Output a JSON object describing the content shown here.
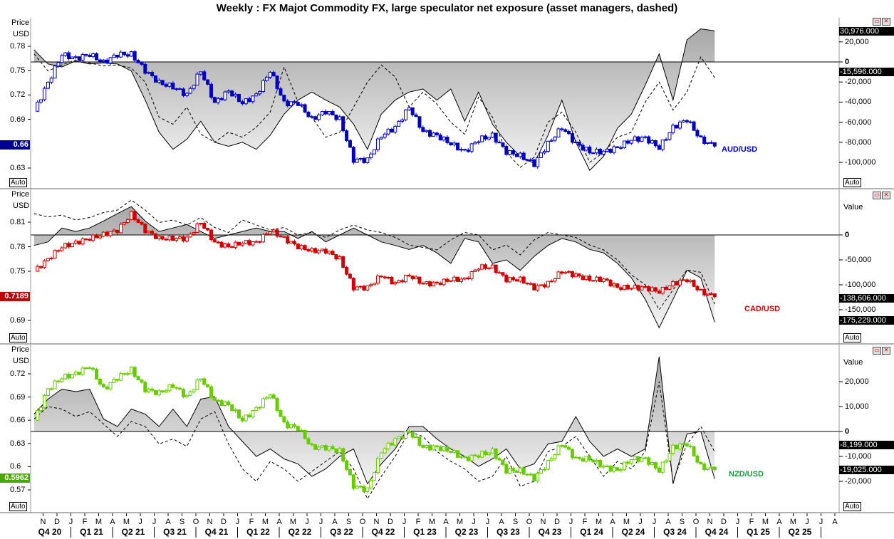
{
  "title": "Weekly : FX Majot Commodity FX, large speculator net exposure (asset managers, dashed)",
  "axis_common": {
    "price_label": "Price",
    "currency_label": "USD",
    "value_label": "Value",
    "auto_label": "Auto"
  },
  "months": [
    "N",
    "D",
    "J",
    "F",
    "M",
    "A",
    "M",
    "J",
    "J",
    "A",
    "S",
    "O",
    "N",
    "D",
    "J",
    "F",
    "M",
    "A",
    "M",
    "J",
    "J",
    "A",
    "S",
    "O",
    "N",
    "D",
    "J",
    "F",
    "M",
    "A",
    "M",
    "J",
    "J",
    "A",
    "S",
    "O",
    "N",
    "D",
    "J",
    "F",
    "M",
    "A",
    "M",
    "J",
    "J",
    "A",
    "S",
    "O",
    "N",
    "D",
    "J",
    "F",
    "M",
    "A",
    "M",
    "J",
    "J",
    "A"
  ],
  "quarters": [
    "Q4 20",
    "Q1 21",
    "Q2 21",
    "Q3 21",
    "Q4 21",
    "Q1 22",
    "Q2 22",
    "Q3 22",
    "Q4 22",
    "Q1 23",
    "Q2 23",
    "Q3 23",
    "Q4 23",
    "Q1 24",
    "Q2 24",
    "Q3 24",
    "Q4 24",
    "Q1 25",
    "Q2 25"
  ],
  "chart_data": [
    {
      "type": "candlestick+line",
      "pair": "AUD/USD",
      "color": "#0000c0",
      "last_price": "0.66",
      "price_ticks": [
        "0.78",
        "0.75",
        "0.72",
        "0.69",
        "0.63"
      ],
      "value_ticks": [
        "20,000",
        "0",
        "-20,000",
        "-40,000",
        "-60,000",
        "-80,000",
        "-100,000"
      ],
      "last_values": [
        "30,976.000",
        "-15,596.000"
      ],
      "price_monthly": [
        0.7,
        0.735,
        0.77,
        0.765,
        0.77,
        0.76,
        0.77,
        0.77,
        0.75,
        0.735,
        0.73,
        0.72,
        0.75,
        0.71,
        0.725,
        0.71,
        0.72,
        0.75,
        0.71,
        0.71,
        0.69,
        0.7,
        0.69,
        0.64,
        0.64,
        0.67,
        0.68,
        0.705,
        0.675,
        0.67,
        0.66,
        0.65,
        0.665,
        0.67,
        0.65,
        0.645,
        0.635,
        0.66,
        0.68,
        0.66,
        0.65,
        0.65,
        0.655,
        0.665,
        0.667,
        0.655,
        0.68,
        0.69,
        0.665,
        0.657
      ],
      "net_large_spec": [
        12000,
        -2000,
        -5000,
        1000,
        -2000,
        -1000,
        -2000,
        -9000,
        -38000,
        -70000,
        -87000,
        -77000,
        -59000,
        -80000,
        -84000,
        -80000,
        -87000,
        -73000,
        -52000,
        -38000,
        -30000,
        -38000,
        -45000,
        -62000,
        -87000,
        -52000,
        -38000,
        -30000,
        -27000,
        -38000,
        -27000,
        -59000,
        -30000,
        -62000,
        -80000,
        -94000,
        -101000,
        -73000,
        -38000,
        -80000,
        -108000,
        -94000,
        -66000,
        -52000,
        -23000,
        8000,
        -38000,
        22000,
        33000,
        30976
      ],
      "net_asset_managers": [
        8000,
        -9000,
        -3000,
        2000,
        -1000,
        -4000,
        -3000,
        -6000,
        -20000,
        -55000,
        -62000,
        -45000,
        -72000,
        -80000,
        -70000,
        -75000,
        -65000,
        -50000,
        -5000,
        -40000,
        -55000,
        -75000,
        -70000,
        -45000,
        -20000,
        -3000,
        -15000,
        -45000,
        -30000,
        -42000,
        -60000,
        -72000,
        -35000,
        -55000,
        -90000,
        -105000,
        -95000,
        -60000,
        -50000,
        -70000,
        -100000,
        -90000,
        -75000,
        -70000,
        -40000,
        -20000,
        -48000,
        -30000,
        5000,
        -15596
      ]
    },
    {
      "type": "candlestick+line",
      "pair": "CAD/USD",
      "color": "#d00000",
      "last_price": "0.7189",
      "price_ticks": [
        "0.81",
        "0.78",
        "0.75",
        "0.69"
      ],
      "value_ticks": [
        "0",
        "-50,000",
        "-100,000",
        "-150,000"
      ],
      "last_values": [
        "-138,606.000",
        "-175,229.000"
      ],
      "price_monthly": [
        0.75,
        0.765,
        0.78,
        0.785,
        0.79,
        0.795,
        0.8,
        0.82,
        0.8,
        0.79,
        0.79,
        0.79,
        0.81,
        0.785,
        0.78,
        0.785,
        0.785,
        0.8,
        0.79,
        0.78,
        0.775,
        0.775,
        0.765,
        0.73,
        0.73,
        0.745,
        0.735,
        0.745,
        0.735,
        0.735,
        0.74,
        0.74,
        0.755,
        0.755,
        0.74,
        0.74,
        0.73,
        0.735,
        0.75,
        0.745,
        0.74,
        0.74,
        0.73,
        0.73,
        0.73,
        0.725,
        0.735,
        0.74,
        0.725,
        0.7189
      ],
      "net_large_spec": [
        -21000,
        -14000,
        14000,
        7000,
        14000,
        28000,
        43000,
        57000,
        28000,
        7000,
        14000,
        21000,
        7000,
        -7000,
        0,
        7000,
        14000,
        7000,
        7000,
        -7000,
        7000,
        -14000,
        0,
        14000,
        0,
        -14000,
        -21000,
        -29000,
        -21000,
        -36000,
        -57000,
        -7000,
        -14000,
        -57000,
        -50000,
        -71000,
        -43000,
        -21000,
        -7000,
        -14000,
        -29000,
        -36000,
        -57000,
        -86000,
        -129000,
        -186000,
        -129000,
        -71000,
        -86000,
        -175229
      ],
      "net_asset_managers": [
        43000,
        36000,
        40000,
        30000,
        35000,
        45000,
        50000,
        70000,
        50000,
        25000,
        30000,
        20000,
        35000,
        15000,
        5000,
        30000,
        20000,
        10000,
        15000,
        0,
        5000,
        -5000,
        10000,
        20000,
        10000,
        5000,
        -5000,
        -20000,
        -25000,
        -30000,
        -10000,
        5000,
        0,
        -30000,
        -20000,
        -40000,
        -10000,
        5000,
        0,
        -5000,
        -20000,
        -30000,
        -50000,
        -80000,
        -100000,
        -150000,
        -110000,
        -70000,
        -75000,
        -138606
      ]
    },
    {
      "type": "candlestick+line",
      "pair": "NZD/USD",
      "color": "#66cc00",
      "last_price": "0.5962",
      "price_ticks": [
        "0.72",
        "0.69",
        "0.66",
        "0.63",
        "0.6",
        "0.57"
      ],
      "value_ticks": [
        "20,000",
        "10,000",
        "0",
        "-10,000",
        "-20,000"
      ],
      "last_values": [
        "-8,199.000",
        "-19,025.000"
      ],
      "price_monthly": [
        0.66,
        0.7,
        0.715,
        0.72,
        0.73,
        0.7,
        0.715,
        0.725,
        0.7,
        0.695,
        0.705,
        0.69,
        0.715,
        0.685,
        0.68,
        0.66,
        0.675,
        0.695,
        0.655,
        0.65,
        0.625,
        0.625,
        0.62,
        0.575,
        0.57,
        0.62,
        0.635,
        0.645,
        0.625,
        0.625,
        0.62,
        0.61,
        0.615,
        0.62,
        0.595,
        0.595,
        0.585,
        0.605,
        0.63,
        0.61,
        0.61,
        0.6,
        0.595,
        0.61,
        0.61,
        0.595,
        0.625,
        0.63,
        0.6,
        0.5962
      ],
      "net_large_spec": [
        7000,
        13000,
        17000,
        16000,
        17000,
        5000,
        2000,
        9000,
        7000,
        2000,
        9000,
        2000,
        13000,
        14000,
        2000,
        -4000,
        -10000,
        -7000,
        -11000,
        -13000,
        -18000,
        -15000,
        -10000,
        -7000,
        -21000,
        -13000,
        -7000,
        2000,
        2000,
        -3000,
        -7000,
        -10000,
        -14000,
        -11000,
        -7000,
        -15000,
        -13000,
        -5000,
        -4000,
        6000,
        -4000,
        -10000,
        -7000,
        -10000,
        -7000,
        30000,
        -21000,
        -1000,
        0,
        -19025
      ],
      "net_asset_managers": [
        5000,
        10000,
        9000,
        6000,
        8000,
        3000,
        -2000,
        4000,
        2000,
        -5000,
        -3000,
        -6000,
        5000,
        8000,
        -5000,
        -15000,
        -20000,
        -12000,
        -15000,
        -20000,
        -16000,
        -12000,
        -8000,
        -15000,
        -27000,
        -18000,
        -10000,
        0,
        -2000,
        -8000,
        -12000,
        -15000,
        -20000,
        -18000,
        -10000,
        -22000,
        -20000,
        -8000,
        -6000,
        -2000,
        -10000,
        -18000,
        -12000,
        -15000,
        -8000,
        20000,
        -20000,
        -5000,
        2000,
        -8199
      ]
    }
  ]
}
